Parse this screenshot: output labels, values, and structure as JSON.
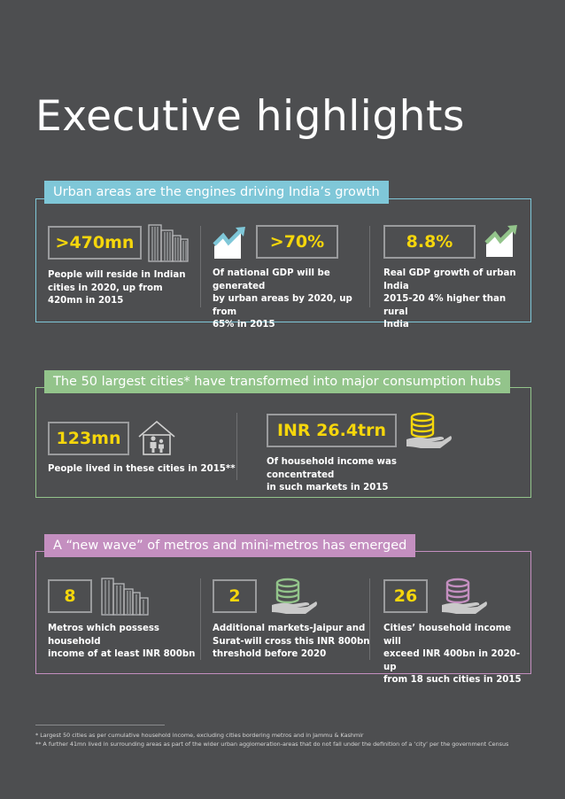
{
  "title": "Executive highlights",
  "colors": {
    "background": "#4d4e50",
    "accent_yellow": "#f5d60c",
    "section1": "#7fc7d8",
    "section2": "#93c48b",
    "section3": "#c48fc0"
  },
  "section1": {
    "heading": "Urban areas are the engines driving India’s growth",
    "items": [
      {
        "value": ">470mn",
        "desc_lines": [
          "People will reside in Indian",
          "cities in 2020, up from",
          "420mn in 2015"
        ],
        "icon": "buildings-icon"
      },
      {
        "value": ">70%",
        "desc_lines": [
          "Of national GDP will be generated",
          "by urban areas by 2020, up from",
          "65% in 2015"
        ],
        "icon": "growth-chart-icon"
      },
      {
        "value": "8.8%",
        "desc_lines": [
          "Real GDP growth of urban India",
          "2015-20 4% higher than rural",
          "India"
        ],
        "icon": "growth-chart-icon"
      }
    ]
  },
  "section2": {
    "heading": "The 50 largest cities* have transformed into major consumption hubs",
    "items": [
      {
        "value": "123mn",
        "desc_lines": [
          "People lived in these cities in 2015**"
        ],
        "icon": "house-family-icon"
      },
      {
        "value": "INR 26.4trn",
        "desc_lines": [
          "Of household income was concentrated",
          "in such markets in 2015"
        ],
        "icon": "coins-hand-icon"
      }
    ]
  },
  "section3": {
    "heading": "A “new wave” of metros and mini-metros has emerged",
    "items": [
      {
        "value": "8",
        "desc_lines": [
          "Metros which possess household",
          "income of at least INR 800bn"
        ],
        "icon": "buildings-icon"
      },
      {
        "value": "2",
        "desc_lines": [
          "Additional markets-Jaipur and",
          "Surat-will cross this INR 800bn",
          "threshold before 2020"
        ],
        "icon": "coins-hand-icon"
      },
      {
        "value": "26",
        "desc_lines": [
          "Cities’ household income will",
          "exceed INR 400bn in 2020-up",
          "from 18 such cities in 2015"
        ],
        "icon": "coins-hand-icon"
      }
    ]
  },
  "footnotes": [
    "* Largest 50 cities as per cumulative household income, excluding cities bordering metros and in Jammu & Kashmir",
    "** A further 41mn lived in surrounding areas as part of the wider urban agglomeration-areas that do not fall under the definition of a ‘city’ per the government Census"
  ]
}
